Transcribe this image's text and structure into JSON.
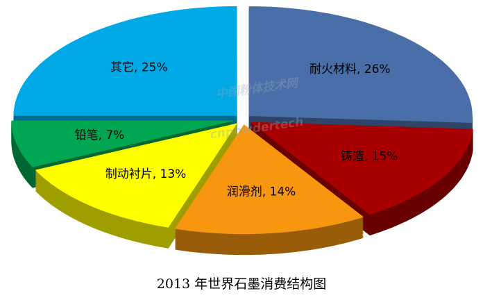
{
  "chart_data": {
    "type": "pie",
    "title": "2013 年世界石墨消费结构图",
    "labels": [
      "耐火材料, 26%",
      "铸造, 15%",
      "润滑剂, 14%",
      "制动衬片, 13%",
      "铅笔, 7%",
      "其它, 25%"
    ],
    "values": [
      26,
      15,
      14,
      13,
      7,
      25
    ],
    "colors": [
      "#4a6fa8",
      "#a80000",
      "#f7960f",
      "#ffff00",
      "#00a651",
      "#00a9e6"
    ],
    "watermark": [
      "中国粉体技术网",
      "cnpowdertech"
    ]
  }
}
